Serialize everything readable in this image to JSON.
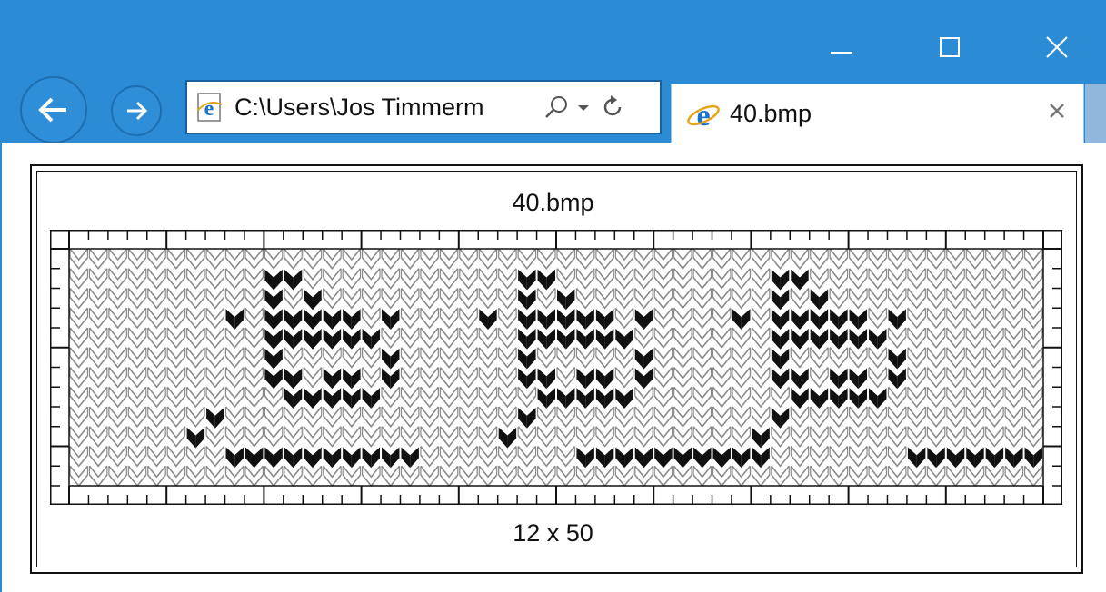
{
  "window": {
    "controls": [
      "minimize",
      "maximize",
      "close"
    ]
  },
  "nav": {
    "back_icon": "back-arrow-icon",
    "forward_icon": "forward-arrow-icon"
  },
  "address_bar": {
    "value": "C:\\Users\\Jos Timmerm",
    "icons": [
      "ie-page-icon",
      "search-icon",
      "dropdown-icon",
      "refresh-icon"
    ]
  },
  "tab": {
    "label": "40.bmp",
    "icon": "ie-logo-icon"
  },
  "image_view": {
    "title": "40.bmp",
    "dimensions": "12 x 50",
    "rows": 12,
    "cols": 50,
    "colors": {
      "background_stitch": "#8a8a8a",
      "motif_stitch": "#111111",
      "grid_line": "#111111",
      "titlebar": "#2b8bd4"
    },
    "pattern": [
      "..................................................",
      "..........##...........##...........##............",
      "..........#.#..........#.#..........#.#...........",
      "........#.#####.#....#.#####.#....#.#####.#.......",
      "..........######.......######.......######........",
      "..........#.....#......#.....#......#.....#.......",
      "..........##.##.#......##.##.#......##.##.#.......",
      "...........#####........#####........#####........",
      ".......#...............#............#.............",
      "......#...............#............#..............",
      "........##########........##########.......#######",
      ".................................................."
    ]
  }
}
